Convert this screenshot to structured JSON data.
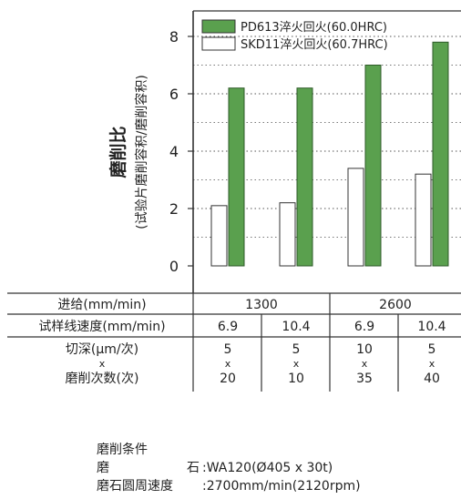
{
  "chart_data": {
    "type": "bar",
    "ylabel": "磨削比",
    "ylabel_sub": "(试验片磨削容积/磨削容积)",
    "ylim": [
      0,
      9
    ],
    "yticks": [
      0,
      2,
      4,
      6,
      8
    ],
    "grid": "dotted horizontal",
    "legend_position": "top",
    "series": [
      {
        "name": "PD613淬火回火(60.0HRC)",
        "color": "#5aa04e",
        "values": [
          6.2,
          6.2,
          7.0,
          7.8
        ]
      },
      {
        "name": "SKD11淬火回火(60.7HRC)",
        "color": "#ffffff",
        "values": [
          2.1,
          2.2,
          3.4,
          3.2
        ]
      }
    ]
  },
  "table": {
    "rows": [
      {
        "label": "进给(mm/min)",
        "cells": [
          "1300",
          "2600"
        ]
      },
      {
        "label": "试样线速度(mm/min)",
        "cells": [
          "6.9",
          "10.4",
          "6.9",
          "10.4"
        ]
      },
      {
        "label_top": "切深(μm/次)",
        "label_mid": "x",
        "label_bottom": "磨削次数(次)",
        "depth": [
          "5",
          "5",
          "10",
          "5"
        ],
        "sep": [
          "x",
          "x",
          "x",
          "x"
        ],
        "passes": [
          "20",
          "10",
          "35",
          "40"
        ]
      }
    ]
  },
  "conditions": {
    "title": "磨削条件",
    "line1_label": "磨",
    "line1_label2": "石",
    "line1_value": ":WA120(Ø405 x 30t)",
    "line2_label": "磨石圆周速度",
    "line2_value": ":2700mm/min(2120rpm)"
  }
}
